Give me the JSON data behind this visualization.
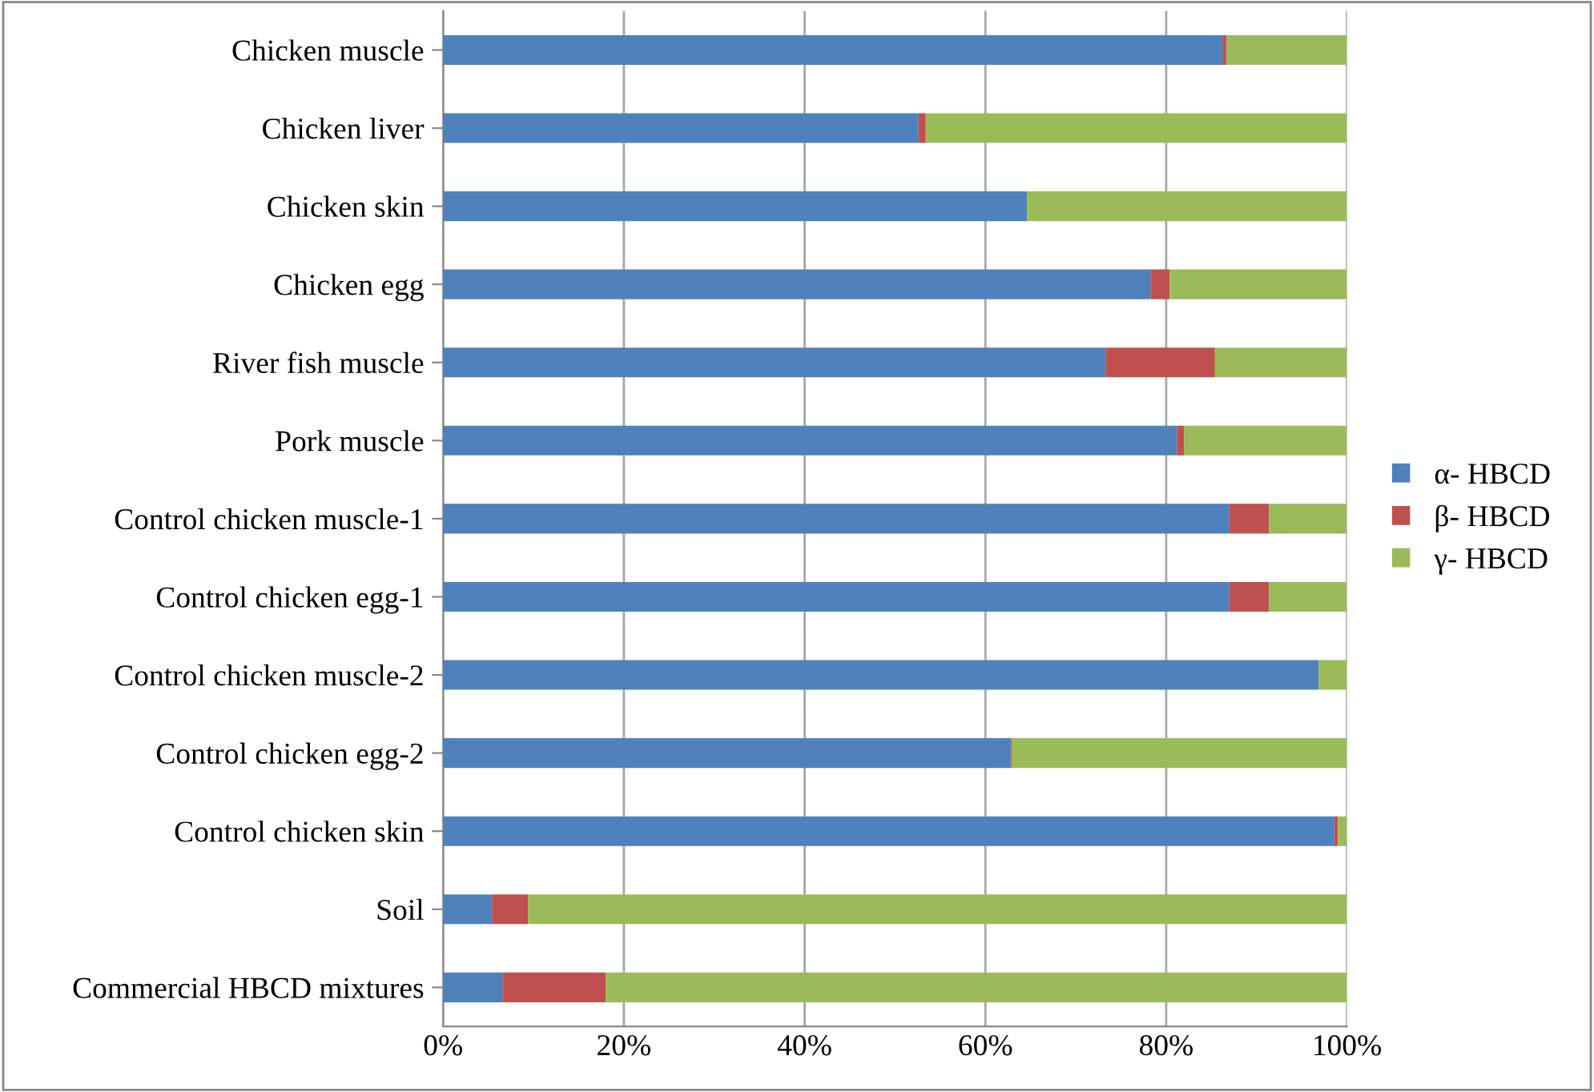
{
  "chart_data": {
    "type": "bar",
    "orientation": "horizontal",
    "stacked": true,
    "categories": [
      "Chicken muscle",
      "Chicken liver",
      "Chicken skin",
      "Chicken egg",
      "River fish muscle",
      "Pork muscle",
      "Control chicken muscle-1",
      "Control chicken egg-1",
      "Control chicken muscle-2",
      "Control chicken egg-2",
      "Control chicken skin",
      "Soil",
      "Commercial HBCD mixtures"
    ],
    "series": [
      {
        "name": "α- HBCD",
        "color": "#4f81bd",
        "values": [
          86.3,
          52.6,
          64.6,
          78.3,
          73.3,
          81.2,
          87.0,
          87.0,
          96.9,
          62.8,
          98.6,
          5.4,
          6.6
        ]
      },
      {
        "name": "β- HBCD",
        "color": "#c0504d",
        "values": [
          0.4,
          0.8,
          0,
          2.1,
          12.1,
          0.8,
          4.4,
          4.4,
          0,
          0.1,
          0.4,
          4.0,
          11.4
        ]
      },
      {
        "name": "γ- HBCD",
        "color": "#9bbb59",
        "values": [
          13.3,
          46.6,
          35.4,
          19.6,
          14.6,
          18.0,
          8.6,
          8.6,
          3.1,
          37.1,
          1.0,
          90.6,
          82.0
        ]
      }
    ],
    "xlim": [
      0,
      100
    ],
    "xticks": [
      {
        "value": 0,
        "label": "0%"
      },
      {
        "value": 20,
        "label": "20%"
      },
      {
        "value": 40,
        "label": "40%"
      },
      {
        "value": 60,
        "label": "60%"
      },
      {
        "value": 80,
        "label": "80%"
      },
      {
        "value": 100,
        "label": "100%"
      }
    ],
    "grid": "x",
    "legend": "right"
  }
}
